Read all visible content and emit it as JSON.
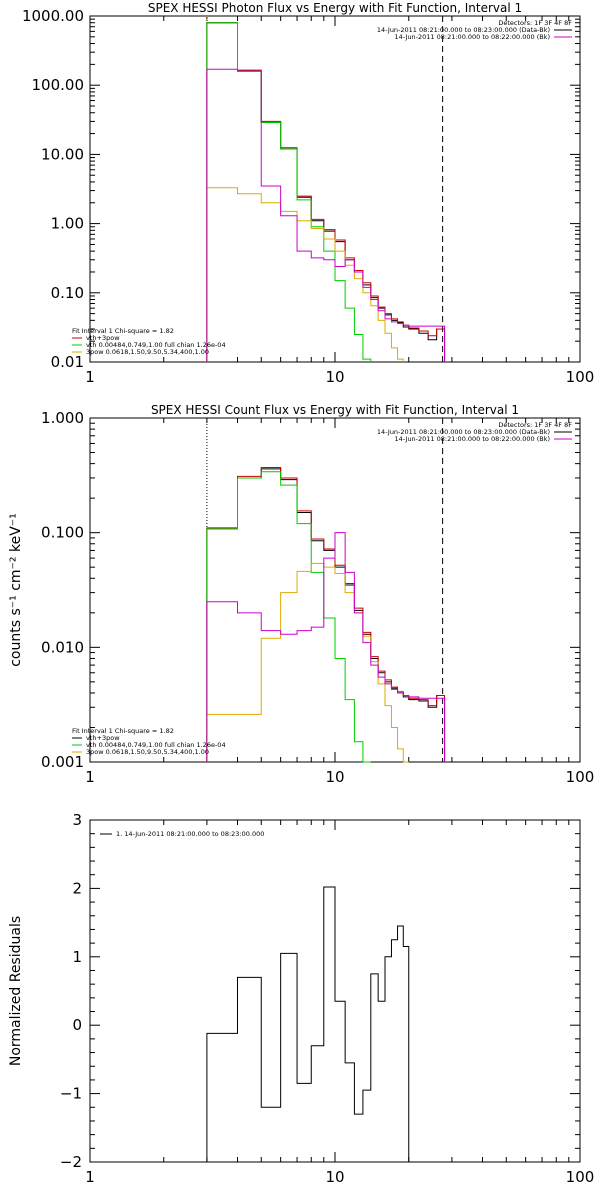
{
  "chart_data": [
    {
      "type": "line",
      "title": "SPEX HESSI Photon Flux vs Energy with Fit Function, Interval 1",
      "ylabel": "",
      "xscale": "log",
      "yscale": "log",
      "xlim": [
        1,
        100
      ],
      "ylim": [
        0.01,
        1000
      ],
      "xtick_labels": [
        "1",
        "10",
        "100"
      ],
      "ytick_labels": [
        "0.01",
        "0.10",
        "1.00",
        "10.00",
        "100.00",
        "1000.00"
      ],
      "vlines": [
        {
          "x": 3,
          "style": "dotted",
          "color": "#ff9900"
        },
        {
          "x": 27.5,
          "style": "dashed",
          "color": "#000000"
        }
      ],
      "legend_top_right": [
        {
          "text": "Detectors: 1F 3F 4F 8F",
          "color": "#000000"
        },
        {
          "text": "14-Jun-2011 08:21:00.000 to 08:23:00.000 (Data-Bk)",
          "color": "#000000",
          "swatch": "#000000"
        },
        {
          "text": "14-Jun-2011 08:21:00.000 to 08:22:00.000 (Bk)",
          "color": "#000000",
          "swatch": "#cc00cc"
        }
      ],
      "legend_bottom_left": [
        {
          "text": "Fit Interval 1    Chi-square = 1.82",
          "swatch": ""
        },
        {
          "text": "vth+3pow",
          "swatch": "#cc0000"
        },
        {
          "text": "vth 0.00484,0.749,1.00   full chian 1.26e-04",
          "swatch": "#00cc00"
        },
        {
          "text": "3pow 0.0618,1.50,9.50,5.34,400,1.00",
          "swatch": "#ddaa00"
        }
      ],
      "edges": [
        3,
        4,
        5,
        6,
        7,
        8,
        9,
        10,
        11,
        12,
        13,
        14,
        15,
        16,
        17,
        18,
        19,
        20,
        22,
        24,
        26,
        28
      ],
      "series": [
        {
          "color": "#000000",
          "values": [
            800,
            160,
            29,
            12,
            2.4,
            1.1,
            0.78,
            0.55,
            0.3,
            0.2,
            0.13,
            0.085,
            0.06,
            0.048,
            0.04,
            0.037,
            0.032,
            0.03,
            0.026,
            0.021,
            0.03
          ]
        },
        {
          "color": "#cc0000",
          "values": [
            800,
            165,
            30,
            12.5,
            2.5,
            1.15,
            0.82,
            0.58,
            0.32,
            0.21,
            0.14,
            0.09,
            0.062,
            0.05,
            0.042,
            0.038,
            0.034,
            0.031,
            0.028,
            0.024,
            0.03
          ]
        },
        {
          "color": "#00cc00",
          "values": [
            800,
            160,
            29,
            12,
            2.2,
            0.9,
            0.4,
            0.15,
            0.06,
            0.025,
            0.011
          ]
        },
        {
          "color": "#ddaa00",
          "values": [
            3.3,
            2.7,
            2.0,
            1.5,
            1.1,
            0.85,
            0.6,
            0.4,
            0.25,
            0.16,
            0.1,
            0.065,
            0.04,
            0.026,
            0.016,
            0.011
          ]
        },
        {
          "color": "#cc00cc",
          "values": [
            170,
            160,
            3.5,
            1.3,
            0.4,
            0.32,
            0.3,
            0.24,
            0.3,
            0.2,
            0.12,
            0.08,
            0.055,
            0.042,
            0.038,
            0.036,
            0.034,
            0.033,
            0.033,
            0.033,
            0.033
          ]
        }
      ]
    },
    {
      "type": "line",
      "title": "SPEX HESSI Count Flux vs Energy with Fit Function, Interval 1",
      "ylabel": "counts s⁻¹ cm⁻² keV⁻¹",
      "xscale": "log",
      "yscale": "log",
      "xlim": [
        1,
        100
      ],
      "ylim": [
        0.001,
        1
      ],
      "xtick_labels": [
        "1",
        "10",
        "100"
      ],
      "ytick_labels": [
        "0.001",
        "0.010",
        "0.100",
        "1.000"
      ],
      "vlines": [
        {
          "x": 3,
          "style": "dotted",
          "color": "#000000"
        },
        {
          "x": 27.5,
          "style": "dashed",
          "color": "#000000"
        }
      ],
      "legend_top_right": [
        {
          "text": "Detectors: 1F 3F 4F 8F",
          "color": "#000000"
        },
        {
          "text": "14-Jun-2011 08:21:00.000 to 08:23:00.000 (Data-Bk)",
          "color": "#000000",
          "swatch": "#000000"
        },
        {
          "text": "14-Jun-2011 08:21:00.000 to 08:22:00.000 (Bk)",
          "color": "#000000",
          "swatch": "#cc00cc"
        }
      ],
      "legend_bottom_left": [
        {
          "text": "Fit Interval 1    Chi-square = 1.82",
          "swatch": ""
        },
        {
          "text": "vth+3pow",
          "swatch": "#000000"
        },
        {
          "text": "vth 0.00484,0.749,1.00   full chian 1.26e-04",
          "swatch": "#00cc00"
        },
        {
          "text": "3pow 0.0618,1.50,9.50,5.34,400,1.00",
          "swatch": "#ddaa00"
        }
      ],
      "edges": [
        3,
        4,
        5,
        6,
        7,
        8,
        9,
        10,
        11,
        12,
        13,
        14,
        15,
        16,
        17,
        18,
        19,
        20,
        22,
        24,
        26,
        28
      ],
      "series": [
        {
          "color": "#000000",
          "values": [
            0.108,
            0.3,
            0.36,
            0.29,
            0.15,
            0.085,
            0.07,
            0.05,
            0.035,
            0.021,
            0.013,
            0.008,
            0.006,
            0.005,
            0.0044,
            0.004,
            0.0037,
            0.0035,
            0.0034,
            0.003,
            0.0038
          ]
        },
        {
          "color": "#cc0000",
          "values": [
            0.11,
            0.31,
            0.37,
            0.3,
            0.155,
            0.088,
            0.072,
            0.052,
            0.036,
            0.022,
            0.0135,
            0.0083,
            0.0062,
            0.0052,
            0.0045,
            0.0041,
            0.0038,
            0.0036,
            0.0035,
            0.0031,
            0.0038
          ]
        },
        {
          "color": "#00cc00",
          "values": [
            0.108,
            0.3,
            0.34,
            0.26,
            0.12,
            0.045,
            0.018,
            0.008,
            0.0035,
            0.0015,
            0.001
          ]
        },
        {
          "color": "#ddaa00",
          "values": [
            0.0026,
            0.0026,
            0.012,
            0.03,
            0.046,
            0.054,
            0.05,
            0.044,
            0.03,
            0.02,
            0.0125,
            0.0075,
            0.0048,
            0.0031,
            0.002,
            0.0013,
            0.001
          ]
        },
        {
          "color": "#cc00cc",
          "values": [
            0.025,
            0.02,
            0.014,
            0.013,
            0.014,
            0.015,
            0.06,
            0.1,
            0.045,
            0.02,
            0.011,
            0.007,
            0.0055,
            0.0048,
            0.0043,
            0.004,
            0.0038,
            0.0037,
            0.0036,
            0.0036,
            0.0036
          ]
        }
      ]
    },
    {
      "type": "line",
      "title": "",
      "ylabel": "Normalized Residuals",
      "xscale": "log",
      "yscale": "linear",
      "xlim": [
        1,
        100
      ],
      "ylim": [
        -2,
        3
      ],
      "xtick_labels": [
        "1",
        "10",
        "100"
      ],
      "ytick_labels": [
        "−2",
        "−1",
        "0",
        "1",
        "2",
        "3"
      ],
      "legend_top_left": [
        {
          "text": "1. 14-Jun-2011 08:21:00.000 to 08:23:00.000",
          "swatch": "#000000"
        }
      ],
      "edges": [
        3,
        4,
        5,
        6,
        7,
        8,
        9,
        10,
        11,
        12,
        13,
        14,
        15,
        16,
        17,
        18,
        19,
        20,
        22,
        24,
        26,
        28
      ],
      "series": [
        {
          "color": "#000000",
          "values": [
            -0.12,
            0.7,
            -1.2,
            1.05,
            -0.85,
            -0.3,
            2.02,
            0.35,
            -0.55,
            -1.3,
            -0.95,
            0.75,
            0.35,
            1.0,
            1.25,
            1.45,
            1.15
          ]
        }
      ]
    }
  ]
}
